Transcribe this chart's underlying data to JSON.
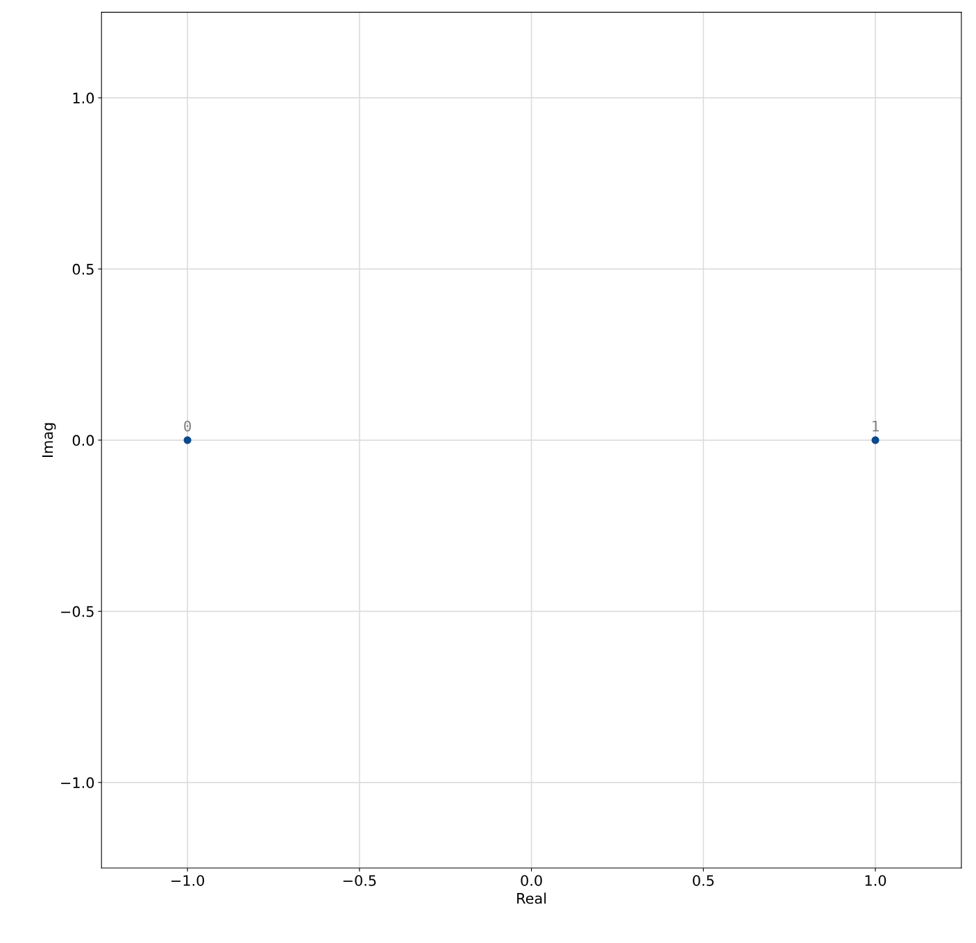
{
  "chart_data": {
    "type": "scatter",
    "xlabel": "Real",
    "ylabel": "Imag",
    "x": [
      -1.0,
      1.0
    ],
    "series": [
      {
        "color": "#0b4a8b",
        "values": [
          0.0,
          0.0
        ]
      }
    ],
    "annotations": [
      {
        "text": "0",
        "x": -1.0,
        "y": 0.0
      },
      {
        "text": "1",
        "x": 1.0,
        "y": 0.0
      }
    ],
    "xlim": [
      -1.25,
      1.25
    ],
    "ylim": [
      -1.25,
      1.25
    ],
    "xticks": [
      {
        "value": -1.0,
        "label": "−1.0"
      },
      {
        "value": -0.5,
        "label": "−0.5"
      },
      {
        "value": 0.0,
        "label": "0.0"
      },
      {
        "value": 0.5,
        "label": "0.5"
      },
      {
        "value": 1.0,
        "label": "1.0"
      }
    ],
    "yticks": [
      {
        "value": -1.0,
        "label": "−1.0"
      },
      {
        "value": -0.5,
        "label": "−0.5"
      },
      {
        "value": 0.0,
        "label": "0.0"
      },
      {
        "value": 0.5,
        "label": "0.5"
      },
      {
        "value": 1.0,
        "label": "1.0"
      }
    ],
    "grid": true,
    "marker": "circle",
    "legend": false
  }
}
